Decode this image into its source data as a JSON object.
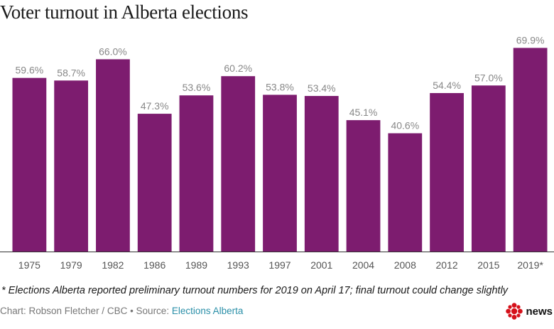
{
  "title": "Voter turnout in Alberta elections",
  "footnote": "* Elections Alberta reported preliminary turnout numbers for 2019 on April 17; final turnout could change slightly",
  "credit_prefix": "Chart: Robson Fletcher / CBC • Source: ",
  "credit_source": "Elections Alberta",
  "logo_text": "news",
  "colors": {
    "bar": "#7d1c6f",
    "label": "#888888",
    "axis": "#333333",
    "tick": "#555555"
  },
  "chart_data": {
    "type": "bar",
    "title": "Voter turnout in Alberta elections",
    "categories": [
      "1975",
      "1979",
      "1982",
      "1986",
      "1989",
      "1993",
      "1997",
      "2001",
      "2004",
      "2008",
      "2012",
      "2015",
      "2019*"
    ],
    "values": [
      59.6,
      58.7,
      66.0,
      47.3,
      53.6,
      60.2,
      53.8,
      53.4,
      45.1,
      40.6,
      54.4,
      57.0,
      69.9
    ],
    "value_labels": [
      "59.6%",
      "58.7%",
      "66.0%",
      "47.3%",
      "53.6%",
      "60.2%",
      "53.8%",
      "53.4%",
      "45.1%",
      "40.6%",
      "54.4%",
      "57.0%",
      "69.9%"
    ],
    "xlabel": "",
    "ylabel": "",
    "ylim": [
      0,
      70
    ],
    "grid": false,
    "legend": "none"
  }
}
